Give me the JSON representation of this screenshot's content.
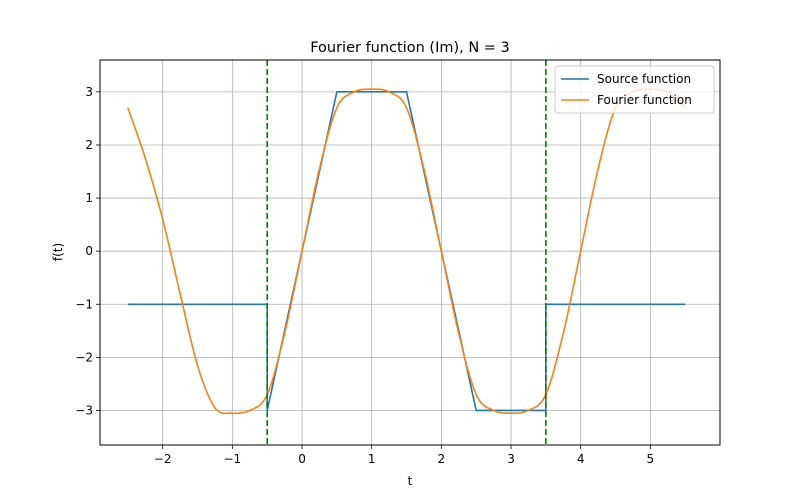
{
  "chart_data": {
    "type": "line",
    "title": "Fourier function (Im), N = 3",
    "xlabel": "t",
    "ylabel": "f(t)",
    "xlim": [
      -2.9,
      6.0
    ],
    "ylim": [
      -3.65,
      3.6
    ],
    "xticks": [
      -2,
      -1,
      0,
      1,
      2,
      3,
      4,
      5
    ],
    "yticks": [
      -3,
      -2,
      -1,
      0,
      1,
      2,
      3
    ],
    "xtick_labels": [
      "−2",
      "−1",
      "0",
      "1",
      "2",
      "3",
      "4",
      "5"
    ],
    "ytick_labels": [
      "−3",
      "−2",
      "−1",
      "0",
      "1",
      "2",
      "3"
    ],
    "grid": true,
    "legend_position": "top-right",
    "series": [
      {
        "name": "Source function",
        "color": "#1f77b4",
        "x": [
          -2.5,
          -0.5,
          -0.5,
          0.5,
          1.5,
          2.5,
          3.5,
          3.5,
          5.5
        ],
        "y": [
          -1,
          -1,
          -3,
          3,
          3,
          -3,
          -3,
          -1,
          -1
        ]
      },
      {
        "name": "Fourier function",
        "color": "#ff7f0e",
        "x": [
          -2.5,
          -2.25,
          -2.0,
          -1.75,
          -1.5,
          -1.25,
          -1.0,
          -0.75,
          -0.5,
          -0.25,
          0.0,
          0.25,
          0.5,
          0.75,
          1.0,
          1.25,
          1.5,
          1.75,
          2.0,
          2.25,
          2.5,
          2.75,
          3.0,
          3.25,
          3.5,
          3.75,
          4.0,
          4.25,
          4.5,
          4.75,
          5.0,
          5.25,
          5.5
        ],
        "y": [
          2.7,
          1.75,
          0.6,
          -0.8,
          -2.15,
          -2.95,
          -3.05,
          -3.0,
          -2.7,
          -1.55,
          0.0,
          1.55,
          2.7,
          3.0,
          3.05,
          3.0,
          2.7,
          1.55,
          0.0,
          -1.55,
          -2.7,
          -3.0,
          -3.05,
          -3.0,
          -2.7,
          -1.55,
          0.0,
          1.55,
          2.7,
          3.0,
          3.05,
          3.0,
          2.7
        ]
      }
    ],
    "vlines": [
      {
        "x": -0.5,
        "color": "#008000",
        "style": "dashed"
      },
      {
        "x": 3.5,
        "color": "#008000",
        "style": "dashed"
      }
    ]
  }
}
